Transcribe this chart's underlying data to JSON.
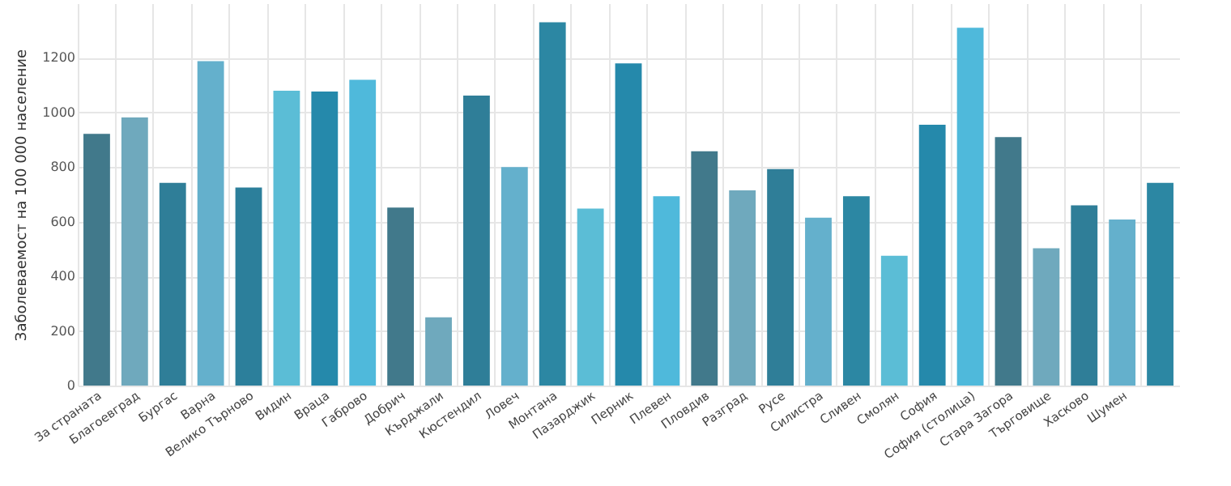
{
  "chart_data": {
    "type": "bar",
    "ylabel": "Заболеваемост на 100 000 население",
    "categories": [
      "За страната",
      "Благоевград",
      "Бургас",
      "Варна",
      "Велико Търново",
      "Видин",
      "Враца",
      "Габрово",
      "Добрич",
      "Кърджали",
      "Кюстендил",
      "Ловеч",
      "Монтана",
      "Пазарджик",
      "Перник",
      "Плевен",
      "Пловдив",
      "Разград",
      "Русе",
      "Силистра",
      "Сливен",
      "Смолян",
      "София",
      "София (столица)",
      "Стара Загора",
      "Търговище",
      "Хасково",
      "Шумен",
      null
    ],
    "values": [
      922,
      982,
      742,
      1188,
      725,
      1080,
      1077,
      1120,
      652,
      250,
      1062,
      800,
      1330,
      648,
      1180,
      693,
      858,
      715,
      793,
      615,
      693,
      475,
      955,
      1310,
      910,
      503,
      660,
      608,
      742
    ],
    "colors": [
      "#41798b",
      "#6fa9bd",
      "#2f7e98",
      "#64b0cc",
      "#2c7f9b",
      "#5bbdd6",
      "#2589ab",
      "#4fb9db",
      "#41798b",
      "#6fa9bd",
      "#2f7e98",
      "#64b0cc",
      "#2c87a3",
      "#5bbdd6",
      "#2589ab",
      "#4fb9db",
      "#41798b",
      "#6fa9bd",
      "#2f7e98",
      "#64b0cc",
      "#2c87a3",
      "#5bbdd6",
      "#2589ab",
      "#4fb9db",
      "#41798b",
      "#6fa9bd",
      "#2f7e98",
      "#64b0cc",
      "#2c87a3"
    ],
    "ylim": [
      0,
      1400
    ],
    "yticks": [
      0,
      200,
      400,
      600,
      800,
      1000,
      1200
    ],
    "grid": true
  }
}
